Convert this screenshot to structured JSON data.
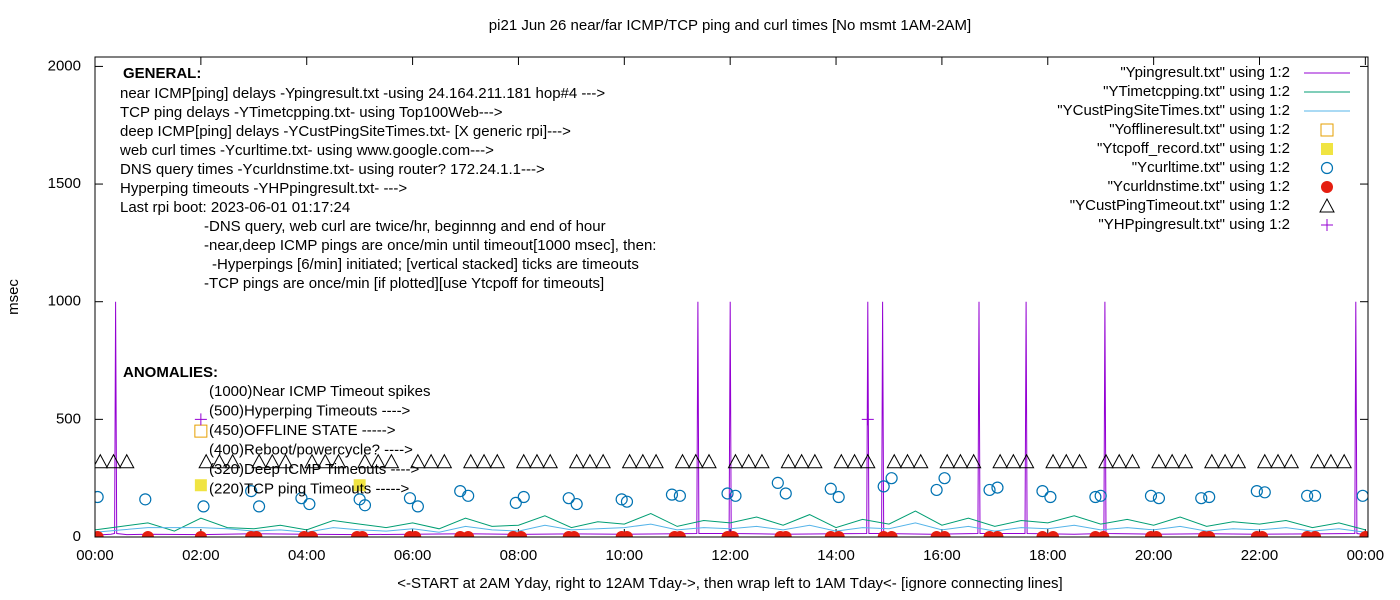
{
  "chart_data": {
    "type": "line",
    "title": "pi21 Jun 26  near/far ICMP/TCP ping and curl times [No msmt 1AM-2AM]",
    "x_label": "<-START at 2AM Yday, right to 12AM Tday->, then wrap left to 1AM Tday<- [ignore connecting lines]",
    "y_label": "msec",
    "xlim": [
      0,
      24.05
    ],
    "ylim": [
      0,
      2040
    ],
    "xticks": [
      {
        "value": 0,
        "label": "00:00"
      },
      {
        "value": 2,
        "label": "02:00"
      },
      {
        "value": 4,
        "label": "04:00"
      },
      {
        "value": 6,
        "label": "06:00"
      },
      {
        "value": 8,
        "label": "08:00"
      },
      {
        "value": 10,
        "label": "10:00"
      },
      {
        "value": 12,
        "label": "12:00"
      },
      {
        "value": 14,
        "label": "14:00"
      },
      {
        "value": 16,
        "label": "16:00"
      },
      {
        "value": 18,
        "label": "18:00"
      },
      {
        "value": 20,
        "label": "20:00"
      },
      {
        "value": 22,
        "label": "22:00"
      },
      {
        "value": 24,
        "label": "00:00"
      }
    ],
    "yticks": [
      0,
      500,
      1000,
      1500,
      2000
    ],
    "general": {
      "heading": "GENERAL:",
      "lines": [
        "near ICMP[ping] delays -Ypingresult.txt -using 24.164.211.181 hop#4 --->",
        "TCP ping delays -YTimetcpping.txt- using Top100Web--->",
        "deep ICMP[ping] delays -YCustPingSiteTimes.txt- [X generic rpi]--->",
        "web curl times -Ycurltime.txt- using www.google.com--->",
        "DNS query times -Ycurldnstime.txt- using router? 172.24.1.1--->",
        "Hyperping timeouts -YHPpingresult.txt- --->",
        "Last rpi boot: 2023-06-01 01:17:24",
        "-DNS query, web curl are twice/hr, beginnng and end of hour",
        "-near,deep ICMP pings are once/min until timeout[1000 msec], then:",
        "-Hyperpings [6/min] initiated; [vertical stacked] ticks are timeouts",
        "-TCP pings are once/min [if plotted][use Ytcpoff for timeouts]"
      ]
    },
    "anomalies": {
      "heading": "ANOMALIES:",
      "lines": [
        "(1000)Near ICMP Timeout spikes",
        "(500)Hyperping Timeouts ---->",
        "(450)OFFLINE STATE ----->",
        "(400)Reboot/powercycle? ---->",
        "(320)Deep ICMP Timeouts ---->",
        "(220)TCP ping Timeouts ----->"
      ]
    },
    "series": [
      {
        "name": "\"Ypingresult.txt\" using 1:2",
        "style": "line",
        "color": "#9400d3",
        "x": [
          0,
          0.3,
          0.37,
          0.39,
          0.41,
          0.6,
          1,
          2,
          3,
          4,
          5,
          6,
          7,
          8,
          9,
          10,
          11,
          11.37,
          11.39,
          11.41,
          11.98,
          12.0,
          12.02,
          13,
          14,
          14.58,
          14.6,
          14.62,
          14.86,
          14.88,
          14.9,
          15.8,
          16.68,
          16.7,
          16.72,
          17.57,
          17.59,
          17.61,
          18.5,
          19.06,
          19.08,
          19.1,
          20,
          21,
          22,
          23,
          23.8,
          23.82,
          23.84,
          24
        ],
        "values": [
          8,
          12,
          15,
          1000,
          15,
          10,
          12,
          10,
          14,
          12,
          10,
          12,
          14,
          11,
          13,
          12,
          14,
          15,
          1000,
          15,
          15,
          1000,
          15,
          12,
          14,
          15,
          1000,
          15,
          15,
          1000,
          15,
          12,
          15,
          1000,
          15,
          15,
          1000,
          15,
          12,
          15,
          1000,
          15,
          12,
          14,
          12,
          13,
          15,
          1000,
          15,
          10
        ]
      },
      {
        "name": "\"YTimetcpping.txt\" using 1:2",
        "style": "line",
        "color": "#009e73",
        "x": [
          0,
          0.5,
          1,
          1.5,
          2,
          2.5,
          3,
          3.5,
          4,
          4.5,
          5,
          5.5,
          6,
          6.5,
          7,
          7.5,
          8,
          8.5,
          9,
          9.5,
          10,
          10.5,
          11,
          11.5,
          12,
          12.5,
          13,
          13.5,
          14,
          14.5,
          15,
          15.5,
          16,
          16.5,
          17,
          17.5,
          18,
          18.5,
          19,
          19.5,
          20,
          20.5,
          21,
          21.5,
          22,
          22.5,
          23,
          23.5,
          24
        ],
        "values": [
          30,
          45,
          60,
          25,
          80,
          40,
          35,
          50,
          30,
          70,
          55,
          40,
          60,
          35,
          80,
          45,
          50,
          90,
          40,
          65,
          55,
          100,
          45,
          70,
          60,
          85,
          50,
          95,
          40,
          75,
          55,
          110,
          50,
          80,
          45,
          70,
          60,
          90,
          55,
          75,
          50,
          85,
          45,
          65,
          55,
          70,
          40,
          60,
          30
        ]
      },
      {
        "name": "\"YCustPingSiteTimes.txt\" using 1:2",
        "style": "line",
        "color": "#56b4e9",
        "x": [
          0,
          0.5,
          1,
          1.5,
          2,
          2.5,
          3,
          3.5,
          4,
          4.5,
          5,
          5.5,
          6,
          6.5,
          7,
          7.5,
          8,
          8.5,
          9,
          9.5,
          10,
          10.5,
          11,
          11.5,
          12,
          12.5,
          13,
          13.5,
          14,
          14.5,
          15,
          15.5,
          16,
          16.5,
          17,
          17.5,
          18,
          18.5,
          19,
          19.5,
          20,
          20.5,
          21,
          21.5,
          22,
          22.5,
          23,
          23.5,
          24
        ],
        "values": [
          20,
          30,
          40,
          40,
          40,
          35,
          25,
          30,
          20,
          40,
          30,
          25,
          35,
          20,
          45,
          30,
          25,
          50,
          30,
          35,
          40,
          55,
          30,
          40,
          35,
          45,
          30,
          50,
          25,
          40,
          35,
          60,
          30,
          45,
          25,
          40,
          35,
          50,
          30,
          40,
          30,
          45,
          25,
          35,
          30,
          40,
          25,
          35,
          20
        ]
      },
      {
        "name": "\"Yofflineresult.txt\" using 1:2",
        "style": "square",
        "color": "#e69f00",
        "x": [
          2.0
        ],
        "values": [
          450
        ]
      },
      {
        "name": "\"Ytcpoff_record.txt\" using 1:2",
        "style": "filled-square",
        "color": "#f0e442",
        "x": [
          2.0,
          5.0
        ],
        "values": [
          220,
          220
        ]
      },
      {
        "name": "\"Ycurltime.txt\" using 1:2",
        "style": "circle",
        "color": "#0072b2",
        "x": [
          0.05,
          0.95,
          2.05,
          2.95,
          3.1,
          3.9,
          4.05,
          5.0,
          5.1,
          5.95,
          6.1,
          6.9,
          7.05,
          7.95,
          8.1,
          8.95,
          9.1,
          9.95,
          10.05,
          10.9,
          11.05,
          11.95,
          12.1,
          12.9,
          13.05,
          13.9,
          14.05,
          14.9,
          15.05,
          15.9,
          16.05,
          16.9,
          17.05,
          17.9,
          18.05,
          18.9,
          19.0,
          19.95,
          20.1,
          20.9,
          21.05,
          21.95,
          22.1,
          22.9,
          23.05,
          23.95
        ],
        "values": [
          170,
          160,
          130,
          195,
          130,
          165,
          140,
          160,
          135,
          165,
          130,
          195,
          175,
          145,
          170,
          165,
          140,
          160,
          150,
          180,
          175,
          185,
          175,
          230,
          185,
          205,
          170,
          215,
          250,
          200,
          250,
          200,
          210,
          195,
          170,
          170,
          175,
          175,
          165,
          165,
          170,
          195,
          190,
          175,
          175,
          175
        ]
      },
      {
        "name": "\"Ycurldnstime.txt\" using 1:2",
        "style": "filled-circle",
        "color": "#e51e10",
        "x": [
          0.05,
          1.0,
          2.0,
          2.95,
          3.05,
          3.95,
          4.1,
          4.95,
          5.05,
          5.95,
          6.05,
          6.9,
          7.05,
          7.9,
          8.05,
          8.95,
          9.05,
          9.95,
          10.05,
          10.95,
          11.05,
          11.95,
          12.05,
          12.95,
          13.05,
          13.9,
          14.05,
          14.9,
          15.05,
          15.9,
          16.05,
          16.9,
          17.05,
          17.9,
          18.1,
          18.9,
          19.05,
          19.95,
          20.05,
          20.95,
          21.05,
          21.95,
          22.05,
          22.9,
          23.05,
          24.0
        ],
        "values": [
          0,
          0,
          0,
          0,
          0,
          0,
          0,
          0,
          0,
          0,
          0,
          0,
          0,
          0,
          0,
          0,
          0,
          0,
          0,
          0,
          0,
          0,
          0,
          0,
          0,
          0,
          0,
          0,
          0,
          0,
          0,
          0,
          0,
          0,
          0,
          0,
          0,
          0,
          0,
          0,
          0,
          0,
          0,
          0,
          0,
          0
        ]
      },
      {
        "name": "\"YCustPingTimeout.txt\" using 1:2",
        "style": "triangle",
        "color": "#000000",
        "x": [
          0.1,
          0.35,
          0.6,
          2.1,
          2.35,
          2.6,
          3.1,
          3.35,
          3.6,
          4.1,
          4.35,
          4.6,
          5.1,
          5.35,
          5.6,
          6.1,
          6.35,
          6.6,
          7.1,
          7.35,
          7.6,
          8.1,
          8.35,
          8.6,
          9.1,
          9.35,
          9.6,
          10.1,
          10.35,
          10.6,
          11.1,
          11.35,
          11.6,
          12.1,
          12.35,
          12.6,
          13.1,
          13.35,
          13.6,
          14.1,
          14.35,
          14.6,
          15.1,
          15.35,
          15.6,
          16.1,
          16.35,
          16.6,
          17.1,
          17.35,
          17.6,
          18.1,
          18.35,
          18.6,
          19.1,
          19.35,
          19.6,
          20.1,
          20.35,
          20.6,
          21.1,
          21.35,
          21.6,
          22.1,
          22.35,
          22.6,
          23.1,
          23.35,
          23.6
        ],
        "values": [
          320,
          320,
          320,
          320,
          320,
          320,
          320,
          320,
          320,
          320,
          320,
          320,
          320,
          320,
          320,
          320,
          320,
          320,
          320,
          320,
          320,
          320,
          320,
          320,
          320,
          320,
          320,
          320,
          320,
          320,
          320,
          320,
          320,
          320,
          320,
          320,
          320,
          320,
          320,
          320,
          320,
          320,
          320,
          320,
          320,
          320,
          320,
          320,
          320,
          320,
          320,
          320,
          320,
          320,
          320,
          320,
          320,
          320,
          320,
          320,
          320,
          320,
          320,
          320,
          320,
          320,
          320,
          320,
          320
        ]
      },
      {
        "name": "\"YHPpingresult.txt\" using 1:2",
        "style": "plus",
        "color": "#9400d3",
        "x": [
          2.0,
          14.6
        ],
        "values": [
          500,
          500
        ]
      }
    ]
  }
}
